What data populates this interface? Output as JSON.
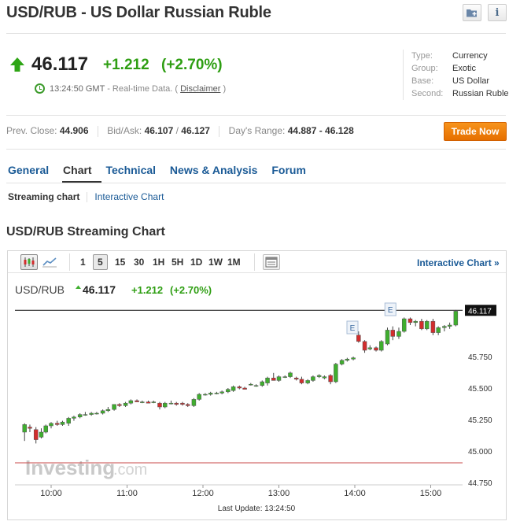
{
  "header": {
    "title": "USD/RUB - US Dollar Russian Ruble",
    "price": "46.117",
    "change": "+1.212",
    "change_pct": "(+2.70%)",
    "time": "13:24:50 GMT",
    "realtime_text": "- Real-time Data. (",
    "disclaimer": "Disclaimer",
    "close_paren": ")"
  },
  "info": [
    {
      "key": "Type:",
      "value": "Currency"
    },
    {
      "key": "Group:",
      "value": "Exotic"
    },
    {
      "key": "Base:",
      "value": "US Dollar"
    },
    {
      "key": "Second:",
      "value": "Russian Ruble"
    }
  ],
  "quote_strip": {
    "prev_close_label": "Prev. Close:",
    "prev_close": "44.906",
    "bidask_label": "Bid/Ask:",
    "bid": "46.107",
    "ask_sep": " / ",
    "ask": "46.127",
    "range_label": "Day's Range:",
    "range": "44.887 - 46.128"
  },
  "trade_button": "Trade Now",
  "tabs": [
    "General",
    "Chart",
    "Technical",
    "News & Analysis",
    "Forum"
  ],
  "subnav": {
    "active": "Streaming chart",
    "link": "Interactive Chart"
  },
  "section_title": "USD/RUB Streaming Chart",
  "toolbar": {
    "intervals": [
      "1",
      "5",
      "15",
      "30",
      "1H",
      "5H",
      "1D",
      "1W",
      "1M"
    ],
    "selected_interval": "5",
    "interactive_link": "Interactive Chart »",
    "icons": [
      "candlestick-icon",
      "line-chart-icon",
      "table-icon"
    ]
  },
  "chart_data": {
    "type": "candlestick",
    "symbol": "USD/RUB",
    "last": "46.117",
    "change": "+1.212",
    "change_pct": "(+2.70%)",
    "ylim": [
      44.75,
      46.18
    ],
    "y_ticks": [
      "46.117",
      "45.750",
      "45.500",
      "45.250",
      "45.000",
      "44.750"
    ],
    "x_ticks": [
      "10:00",
      "11:00",
      "12:00",
      "13:00",
      "14:00",
      "15:00"
    ],
    "x_range_hours": [
      9.6,
      15.5
    ],
    "last_price_line": 46.117,
    "prev_close_line": 44.906,
    "event_markers": [
      {
        "label": "E",
        "time": 14.0
      },
      {
        "label": "E",
        "time": 14.5
      }
    ],
    "watermark": "Investing.com",
    "last_update": "Last Update: 13:24:50",
    "candles": [
      [
        9.65,
        45.15,
        45.22,
        45.08,
        45.21
      ],
      [
        9.72,
        45.19,
        45.21,
        45.15,
        45.18
      ],
      [
        9.8,
        45.17,
        45.19,
        45.06,
        45.09
      ],
      [
        9.87,
        45.11,
        45.18,
        45.1,
        45.15
      ],
      [
        9.93,
        45.15,
        45.21,
        45.14,
        45.2
      ],
      [
        10.0,
        45.2,
        45.23,
        45.18,
        45.22
      ],
      [
        10.08,
        45.22,
        45.24,
        45.2,
        45.21
      ],
      [
        10.15,
        45.21,
        45.24,
        45.2,
        45.23
      ],
      [
        10.23,
        45.22,
        45.27,
        45.2,
        45.26
      ],
      [
        10.3,
        45.26,
        45.28,
        45.24,
        45.27
      ],
      [
        10.38,
        45.27,
        45.3,
        45.26,
        45.29
      ],
      [
        10.45,
        45.29,
        45.31,
        45.28,
        45.29
      ],
      [
        10.53,
        45.29,
        45.31,
        45.28,
        45.3
      ],
      [
        10.6,
        45.3,
        45.31,
        45.29,
        45.3
      ],
      [
        10.68,
        45.3,
        45.33,
        45.29,
        45.32
      ],
      [
        10.75,
        45.32,
        45.35,
        45.31,
        45.33
      ],
      [
        10.83,
        45.33,
        45.37,
        45.32,
        45.37
      ],
      [
        10.9,
        45.37,
        45.38,
        45.35,
        45.36
      ],
      [
        10.98,
        45.36,
        45.39,
        45.35,
        45.38
      ],
      [
        11.05,
        45.38,
        45.41,
        45.37,
        45.4
      ],
      [
        11.13,
        45.4,
        45.41,
        45.39,
        45.39
      ],
      [
        11.2,
        45.39,
        45.4,
        45.38,
        45.39
      ],
      [
        11.28,
        45.39,
        45.4,
        45.38,
        45.38
      ],
      [
        11.35,
        45.39,
        45.4,
        45.38,
        45.39
      ],
      [
        11.43,
        45.38,
        45.39,
        45.33,
        45.35
      ],
      [
        11.5,
        45.35,
        45.39,
        45.34,
        45.38
      ],
      [
        11.58,
        45.38,
        45.4,
        45.37,
        45.38
      ],
      [
        11.65,
        45.38,
        45.39,
        45.36,
        45.37
      ],
      [
        11.73,
        45.38,
        45.39,
        45.36,
        45.37
      ],
      [
        11.8,
        45.37,
        45.38,
        45.35,
        45.36
      ],
      [
        11.88,
        45.36,
        45.42,
        45.35,
        45.41
      ],
      [
        11.95,
        45.41,
        45.46,
        45.4,
        45.45
      ],
      [
        12.03,
        45.45,
        45.46,
        45.44,
        45.45
      ],
      [
        12.1,
        45.45,
        45.47,
        45.44,
        45.46
      ],
      [
        12.18,
        45.46,
        45.47,
        45.45,
        45.46
      ],
      [
        12.25,
        45.46,
        45.48,
        45.45,
        45.47
      ],
      [
        12.33,
        45.47,
        45.5,
        45.46,
        45.49
      ],
      [
        12.4,
        45.48,
        45.52,
        45.47,
        45.51
      ],
      [
        12.48,
        45.51,
        45.52,
        45.49,
        45.5
      ],
      [
        12.55,
        45.5,
        45.51,
        45.49,
        45.49
      ],
      [
        12.63,
        45.53,
        45.54,
        45.52,
        45.53
      ],
      [
        12.7,
        45.52,
        45.53,
        45.51,
        45.52
      ],
      [
        12.78,
        45.52,
        45.56,
        45.51,
        45.55
      ],
      [
        12.85,
        45.54,
        45.59,
        45.52,
        45.58
      ],
      [
        12.93,
        45.58,
        45.62,
        45.56,
        45.56
      ],
      [
        13.0,
        45.56,
        45.6,
        45.55,
        45.59
      ],
      [
        13.08,
        45.59,
        45.6,
        45.58,
        45.59
      ],
      [
        13.15,
        45.59,
        45.63,
        45.58,
        45.62
      ],
      [
        13.23,
        45.58,
        45.59,
        45.56,
        45.57
      ],
      [
        13.3,
        45.57,
        45.59,
        45.53,
        45.54
      ],
      [
        13.38,
        45.54,
        45.57,
        45.53,
        45.56
      ],
      [
        13.45,
        45.56,
        45.6,
        45.55,
        45.59
      ],
      [
        13.53,
        45.59,
        45.61,
        45.58,
        45.6
      ],
      [
        13.6,
        45.58,
        45.6,
        45.57,
        45.59
      ],
      [
        13.68,
        45.6,
        45.61,
        45.53,
        45.55
      ],
      [
        13.75,
        45.55,
        45.7,
        45.54,
        45.69
      ],
      [
        13.83,
        45.69,
        45.73,
        45.68,
        45.72
      ],
      [
        13.9,
        45.72,
        45.74,
        45.71,
        45.73
      ],
      [
        13.98,
        45.73,
        45.75,
        45.72,
        45.74
      ],
      [
        14.05,
        45.92,
        45.95,
        45.86,
        45.87
      ],
      [
        14.13,
        45.87,
        45.88,
        45.78,
        45.8
      ],
      [
        14.2,
        45.81,
        45.84,
        45.8,
        45.82
      ],
      [
        14.28,
        45.82,
        45.83,
        45.79,
        45.8
      ],
      [
        14.35,
        45.8,
        45.88,
        45.79,
        45.87
      ],
      [
        14.43,
        45.85,
        45.98,
        45.84,
        45.96
      ],
      [
        14.5,
        45.96,
        45.99,
        45.88,
        45.91
      ],
      [
        14.58,
        45.91,
        45.98,
        45.89,
        45.95
      ],
      [
        14.65,
        45.95,
        46.06,
        45.94,
        46.05
      ],
      [
        14.73,
        46.05,
        46.06,
        46.0,
        46.02
      ],
      [
        14.8,
        46.02,
        46.04,
        45.99,
        46.03
      ],
      [
        14.88,
        46.03,
        46.05,
        45.96,
        45.97
      ],
      [
        14.95,
        45.97,
        46.04,
        45.96,
        46.03
      ],
      [
        15.03,
        46.03,
        46.05,
        45.92,
        45.94
      ],
      [
        15.1,
        45.94,
        45.99,
        45.92,
        45.98
      ],
      [
        15.18,
        45.98,
        46.0,
        45.95,
        45.99
      ],
      [
        15.25,
        45.99,
        46.02,
        45.97,
        46.0
      ],
      [
        15.33,
        46.0,
        46.12,
        45.99,
        46.11
      ]
    ]
  },
  "colors": {
    "up": "#3fae2e",
    "down": "#d22d2d",
    "link": "#1a5a96",
    "accent": "#f7941d"
  }
}
